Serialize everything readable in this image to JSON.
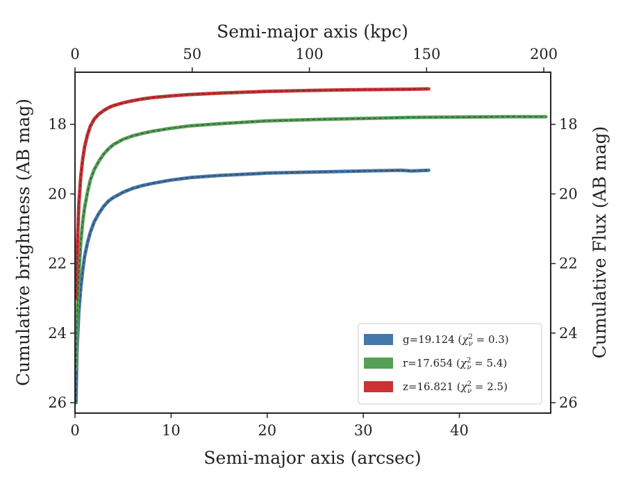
{
  "chart_data": {
    "type": "line",
    "xlabel_bottom": "Semi-major axis (arcsec)",
    "xlabel_top": "Semi-major axis (kpc)",
    "ylabel_left": "Cumulative brightness (AB mag)",
    "ylabel_right": "Cumulative Flux (AB mag)",
    "xlim": [
      0,
      49.5
    ],
    "ylim": [
      26.3,
      16.5
    ],
    "y_inverted": true,
    "xticks_bottom": [
      0,
      10,
      20,
      30,
      40
    ],
    "xticks_top_kpc": [
      0,
      50,
      100,
      150,
      200
    ],
    "kpc_per_arcsec": 4.1,
    "yticks": [
      18,
      20,
      22,
      24,
      26
    ],
    "grid": false,
    "legend_placement": "lower-right",
    "series": [
      {
        "name": "g=19.124 (χ²ν = 0.3)",
        "legend_main": "g=19.124 (",
        "legend_var": "χ",
        "legend_sup": "2",
        "legend_sub": "ν",
        "legend_rest": " = 0.3)",
        "color": "#4477aa",
        "x": [
          0.1,
          0.2,
          0.4,
          0.6,
          0.8,
          1.0,
          1.3,
          1.6,
          2,
          2.5,
          3,
          3.5,
          4,
          5,
          6,
          7,
          8,
          10,
          12,
          15,
          20,
          25,
          30,
          34,
          35,
          36.8
        ],
        "y": [
          26.0,
          24.5,
          23.4,
          22.7,
          22.2,
          21.8,
          21.4,
          21.1,
          20.8,
          20.55,
          20.35,
          20.2,
          20.1,
          19.95,
          19.84,
          19.76,
          19.7,
          19.6,
          19.53,
          19.47,
          19.4,
          19.37,
          19.34,
          19.32,
          19.34,
          19.32
        ]
      },
      {
        "name": "r=17.654 (χ²ν = 5.4)",
        "legend_main": "r=17.654 (",
        "legend_var": "χ",
        "legend_sup": "2",
        "legend_sub": "ν",
        "legend_rest": " = 5.4)",
        "color": "#55a055",
        "x": [
          0.1,
          0.2,
          0.4,
          0.6,
          0.8,
          1.0,
          1.3,
          1.6,
          2,
          2.5,
          3,
          3.5,
          4,
          5,
          6,
          7,
          8,
          10,
          12,
          15,
          20,
          25,
          30,
          35,
          40,
          45,
          49
        ],
        "y": [
          25.0,
          23.6,
          22.3,
          21.4,
          20.8,
          20.4,
          19.95,
          19.6,
          19.3,
          19.05,
          18.85,
          18.7,
          18.58,
          18.43,
          18.33,
          18.26,
          18.2,
          18.11,
          18.04,
          17.98,
          17.9,
          17.86,
          17.83,
          17.8,
          17.79,
          17.78,
          17.78
        ]
      },
      {
        "name": "z=16.821 (χ²ν = 2.5)",
        "legend_main": "z=16.821 (",
        "legend_var": "χ",
        "legend_sup": "2",
        "legend_sub": "ν",
        "legend_rest": " = 2.5)",
        "color": "#cc3333",
        "x": [
          0.1,
          0.2,
          0.4,
          0.6,
          0.8,
          1.0,
          1.3,
          1.6,
          2,
          2.5,
          3,
          3.5,
          4,
          5,
          6,
          7,
          8,
          10,
          12,
          15,
          20,
          25,
          30,
          35,
          36.8
        ],
        "y": [
          23.0,
          21.8,
          20.3,
          19.5,
          19.0,
          18.65,
          18.3,
          18.05,
          17.85,
          17.7,
          17.6,
          17.52,
          17.46,
          17.38,
          17.32,
          17.27,
          17.23,
          17.18,
          17.14,
          17.1,
          17.05,
          17.02,
          17.0,
          16.99,
          16.98
        ]
      }
    ]
  }
}
